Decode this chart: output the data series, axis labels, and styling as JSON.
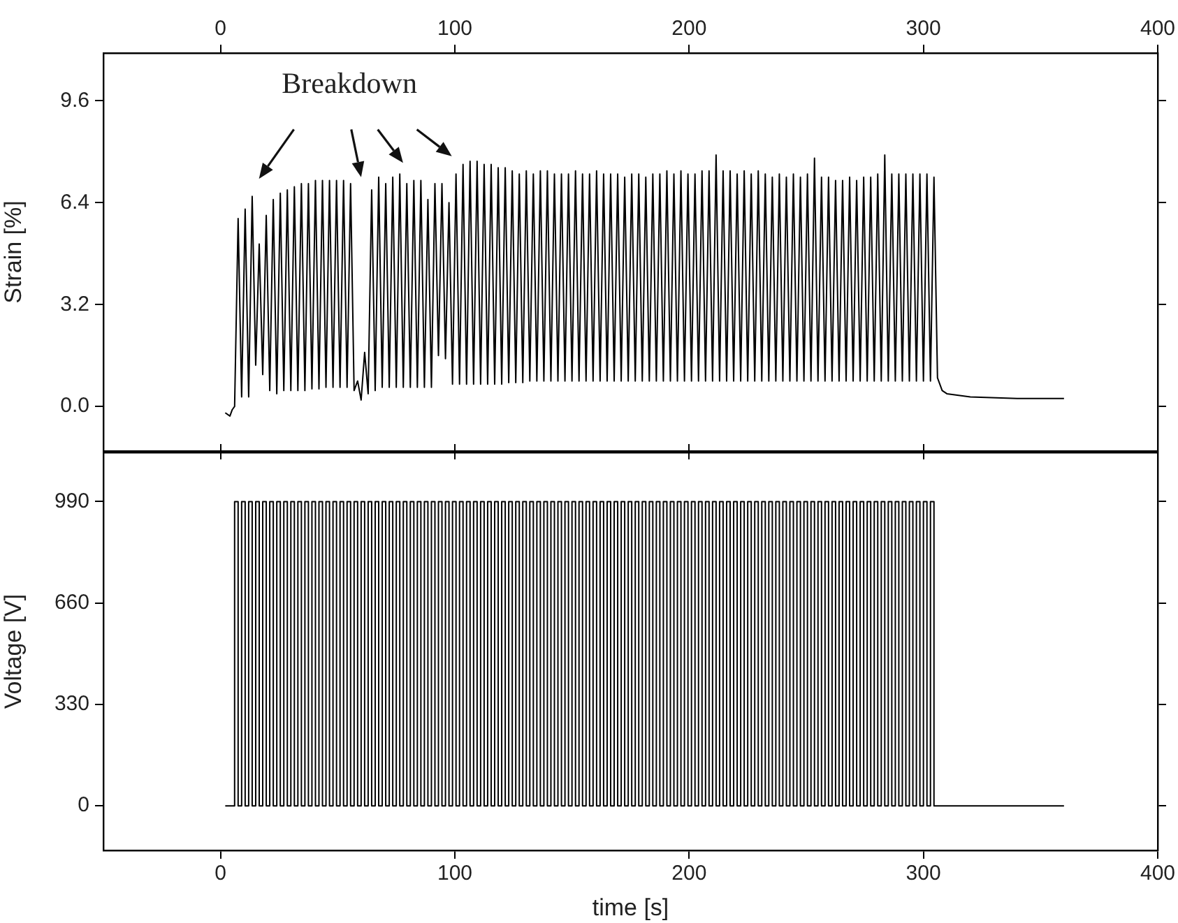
{
  "chart_data": [
    {
      "type": "line",
      "ylabel": "Strain [%]",
      "xlim": [
        -50,
        400
      ],
      "xticks": [
        0,
        100,
        200,
        300,
        400
      ],
      "ylim": [
        -1.4,
        11.1
      ],
      "yticks": [
        {
          "value": 0,
          "label": "0.0"
        },
        3.2,
        6.4,
        9.6
      ],
      "grid": false,
      "legend": false,
      "marker": "none",
      "line_style": "solid",
      "annotations": [
        "Breakdown"
      ],
      "series": [
        {
          "color": "#000000",
          "x": [
            2,
            4,
            5,
            6,
            7.5,
            9,
            10.5,
            12,
            13.5,
            15,
            16.5,
            18,
            19.5,
            21,
            22.5,
            24,
            25.5,
            27,
            28.5,
            30,
            31.5,
            33,
            34.5,
            36,
            37.5,
            39,
            40.5,
            42,
            43.5,
            45,
            46.5,
            48,
            49.5,
            51,
            52.5,
            54,
            55.5,
            57,
            58.5,
            60,
            61.5,
            63,
            64.5,
            66,
            67.5,
            69,
            70.5,
            72,
            73.5,
            75,
            76.5,
            78,
            79.5,
            81,
            82.5,
            84,
            85.5,
            87,
            88.5,
            90,
            91.5,
            93,
            94.5,
            96,
            97.5,
            99,
            100.5,
            102,
            103.5,
            105,
            106.5,
            108,
            109.5,
            111,
            112.5,
            114,
            115.5,
            117,
            118.5,
            120,
            121.5,
            123,
            124.5,
            126,
            127.5,
            129,
            130.5,
            132,
            133.5,
            135,
            136.5,
            138,
            139.5,
            141,
            142.5,
            144,
            145.5,
            147,
            148.5,
            150,
            151.5,
            153,
            154.5,
            156,
            157.5,
            159,
            160.5,
            162,
            163.5,
            165,
            166.5,
            168,
            169.5,
            171,
            172.5,
            174,
            175.5,
            177,
            178.5,
            180,
            181.5,
            183,
            184.5,
            186,
            187.5,
            189,
            190.5,
            192,
            193.5,
            195,
            196.5,
            198,
            199.5,
            201,
            202.5,
            204,
            205.5,
            207,
            208.5,
            210,
            211.5,
            213,
            214.5,
            216,
            217.5,
            219,
            220.5,
            222,
            223.5,
            225,
            226.5,
            228,
            229.5,
            231,
            232.5,
            234,
            235.5,
            237,
            238.5,
            240,
            241.5,
            243,
            244.5,
            246,
            247.5,
            249,
            250.5,
            252,
            253.5,
            255,
            256.5,
            258,
            259.5,
            261,
            262.5,
            264,
            265.5,
            267,
            268.5,
            270,
            271.5,
            273,
            274.5,
            276,
            277.5,
            279,
            280.5,
            282,
            283.5,
            285,
            286.5,
            288,
            289.5,
            291,
            292.5,
            294,
            295.5,
            297,
            298.5,
            300,
            301.5,
            303,
            304.5,
            306,
            308,
            310,
            320,
            340,
            360
          ],
          "values": [
            -0.2,
            -0.3,
            -0.1,
            0.0,
            5.9,
            0.3,
            6.2,
            0.3,
            6.6,
            1.3,
            5.1,
            1.0,
            6.0,
            0.5,
            6.5,
            0.4,
            6.7,
            0.5,
            6.8,
            0.5,
            6.9,
            0.5,
            7.0,
            0.5,
            7.0,
            0.55,
            7.1,
            0.55,
            7.1,
            0.6,
            7.1,
            0.6,
            7.1,
            0.6,
            7.1,
            0.6,
            7.0,
            0.5,
            0.8,
            0.2,
            1.7,
            0.4,
            6.8,
            0.5,
            7.2,
            0.6,
            7.0,
            0.6,
            7.2,
            0.6,
            7.3,
            0.6,
            7.0,
            0.6,
            7.1,
            0.6,
            7.1,
            0.6,
            6.5,
            0.6,
            7.0,
            1.6,
            7.0,
            1.5,
            6.4,
            0.7,
            7.3,
            0.7,
            7.6,
            0.7,
            7.7,
            0.7,
            7.7,
            0.7,
            7.6,
            0.7,
            7.6,
            0.7,
            7.5,
            0.7,
            7.5,
            0.75,
            7.4,
            0.75,
            7.3,
            0.75,
            7.4,
            0.8,
            7.3,
            0.8,
            7.4,
            0.8,
            7.4,
            0.8,
            7.3,
            0.8,
            7.3,
            0.8,
            7.3,
            0.8,
            7.4,
            0.8,
            7.3,
            0.8,
            7.3,
            0.8,
            7.4,
            0.8,
            7.3,
            0.8,
            7.3,
            0.8,
            7.3,
            0.8,
            7.2,
            0.8,
            7.3,
            0.8,
            7.3,
            0.8,
            7.2,
            0.8,
            7.3,
            0.8,
            7.3,
            0.8,
            7.4,
            0.8,
            7.3,
            0.8,
            7.4,
            0.8,
            7.3,
            0.8,
            7.3,
            0.8,
            7.4,
            0.8,
            7.4,
            0.8,
            7.9,
            0.8,
            7.4,
            0.8,
            7.4,
            0.8,
            7.3,
            0.8,
            7.4,
            0.8,
            7.3,
            0.8,
            7.4,
            0.8,
            7.3,
            0.8,
            7.2,
            0.8,
            7.3,
            0.8,
            7.2,
            0.8,
            7.3,
            0.8,
            7.2,
            0.8,
            7.3,
            0.8,
            7.8,
            0.8,
            7.2,
            0.8,
            7.2,
            0.8,
            7.1,
            0.8,
            7.1,
            0.8,
            7.2,
            0.8,
            7.1,
            0.8,
            7.2,
            0.8,
            7.2,
            0.8,
            7.3,
            0.8,
            7.9,
            0.8,
            7.3,
            0.8,
            7.3,
            0.8,
            7.3,
            0.8,
            7.3,
            0.8,
            7.3,
            0.8,
            7.3,
            0.8,
            7.2,
            0.9,
            0.5,
            0.4,
            0.3,
            0.25,
            0.25
          ]
        }
      ]
    },
    {
      "type": "step",
      "xlabel": "time [s]",
      "ylabel": "Voltage [V]",
      "xlim": [
        -50,
        400
      ],
      "xticks": [
        0,
        100,
        200,
        300,
        400
      ],
      "ylim": [
        -145,
        1150
      ],
      "yticks": [
        0,
        330,
        660,
        990
      ],
      "grid": false,
      "legend": false,
      "marker": "none",
      "line_style": "solid",
      "series": [
        {
          "color": "#000000",
          "x": [
            2,
            6,
            7.5,
            9,
            10.5,
            12,
            13.5,
            15,
            16.5,
            18,
            19.5,
            21,
            22.5,
            24,
            25.5,
            27,
            28.5,
            30,
            31.5,
            33,
            34.5,
            36,
            37.5,
            39,
            40.5,
            42,
            43.5,
            45,
            46.5,
            48,
            49.5,
            51,
            52.5,
            54,
            55.5,
            57,
            58.5,
            60,
            61.5,
            63,
            64.5,
            66,
            67.5,
            69,
            70.5,
            72,
            73.5,
            75,
            76.5,
            78,
            79.5,
            81,
            82.5,
            84,
            85.5,
            87,
            88.5,
            90,
            91.5,
            93,
            94.5,
            96,
            97.5,
            99,
            100.5,
            102,
            103.5,
            105,
            106.5,
            108,
            109.5,
            111,
            112.5,
            114,
            115.5,
            117,
            118.5,
            120,
            121.5,
            123,
            124.5,
            126,
            127.5,
            129,
            130.5,
            132,
            133.5,
            135,
            136.5,
            138,
            139.5,
            141,
            142.5,
            144,
            145.5,
            147,
            148.5,
            150,
            151.5,
            153,
            154.5,
            156,
            157.5,
            159,
            160.5,
            162,
            163.5,
            165,
            166.5,
            168,
            169.5,
            171,
            172.5,
            174,
            175.5,
            177,
            178.5,
            180,
            181.5,
            183,
            184.5,
            186,
            187.5,
            189,
            190.5,
            192,
            193.5,
            195,
            196.5,
            198,
            199.5,
            201,
            202.5,
            204,
            205.5,
            207,
            208.5,
            210,
            211.5,
            213,
            214.5,
            216,
            217.5,
            219,
            220.5,
            222,
            223.5,
            225,
            226.5,
            228,
            229.5,
            231,
            232.5,
            234,
            235.5,
            237,
            238.5,
            240,
            241.5,
            243,
            244.5,
            246,
            247.5,
            249,
            250.5,
            252,
            253.5,
            255,
            256.5,
            258,
            259.5,
            261,
            262.5,
            264,
            265.5,
            267,
            268.5,
            270,
            271.5,
            273,
            274.5,
            276,
            277.5,
            279,
            280.5,
            282,
            283.5,
            285,
            286.5,
            288,
            289.5,
            291,
            292.5,
            294,
            295.5,
            297,
            298.5,
            300,
            301.5,
            303,
            304.5,
            360
          ],
          "values": [
            0,
            990,
            0,
            990,
            0,
            990,
            0,
            990,
            0,
            990,
            0,
            990,
            0,
            990,
            0,
            990,
            0,
            990,
            0,
            990,
            0,
            990,
            0,
            990,
            0,
            990,
            0,
            990,
            0,
            990,
            0,
            990,
            0,
            990,
            0,
            990,
            0,
            990,
            0,
            990,
            0,
            990,
            0,
            990,
            0,
            990,
            0,
            990,
            0,
            990,
            0,
            990,
            0,
            990,
            0,
            990,
            0,
            990,
            0,
            990,
            0,
            990,
            0,
            990,
            0,
            990,
            0,
            990,
            0,
            990,
            0,
            990,
            0,
            990,
            0,
            990,
            0,
            990,
            0,
            990,
            0,
            990,
            0,
            990,
            0,
            990,
            0,
            990,
            0,
            990,
            0,
            990,
            0,
            990,
            0,
            990,
            0,
            990,
            0,
            990,
            0,
            990,
            0,
            990,
            0,
            990,
            0,
            990,
            0,
            990,
            0,
            990,
            0,
            990,
            0,
            990,
            0,
            990,
            0,
            990,
            0,
            990,
            0,
            990,
            0,
            990,
            0,
            990,
            0,
            990,
            0,
            990,
            0,
            990,
            0,
            990,
            0,
            990,
            0,
            990,
            0,
            990,
            0,
            990,
            0,
            990,
            0,
            990,
            0,
            990,
            0,
            990,
            0,
            990,
            0,
            990,
            0,
            990,
            0,
            990,
            0,
            990,
            0,
            990,
            0,
            990,
            0,
            990,
            0,
            990,
            0,
            990,
            0,
            990,
            0,
            990,
            0,
            990,
            0,
            990,
            0,
            990,
            0,
            990,
            0,
            990,
            0,
            990,
            0,
            990,
            0,
            990,
            0,
            990,
            0,
            990,
            0,
            990,
            0,
            990,
            0,
            0
          ]
        }
      ]
    }
  ]
}
